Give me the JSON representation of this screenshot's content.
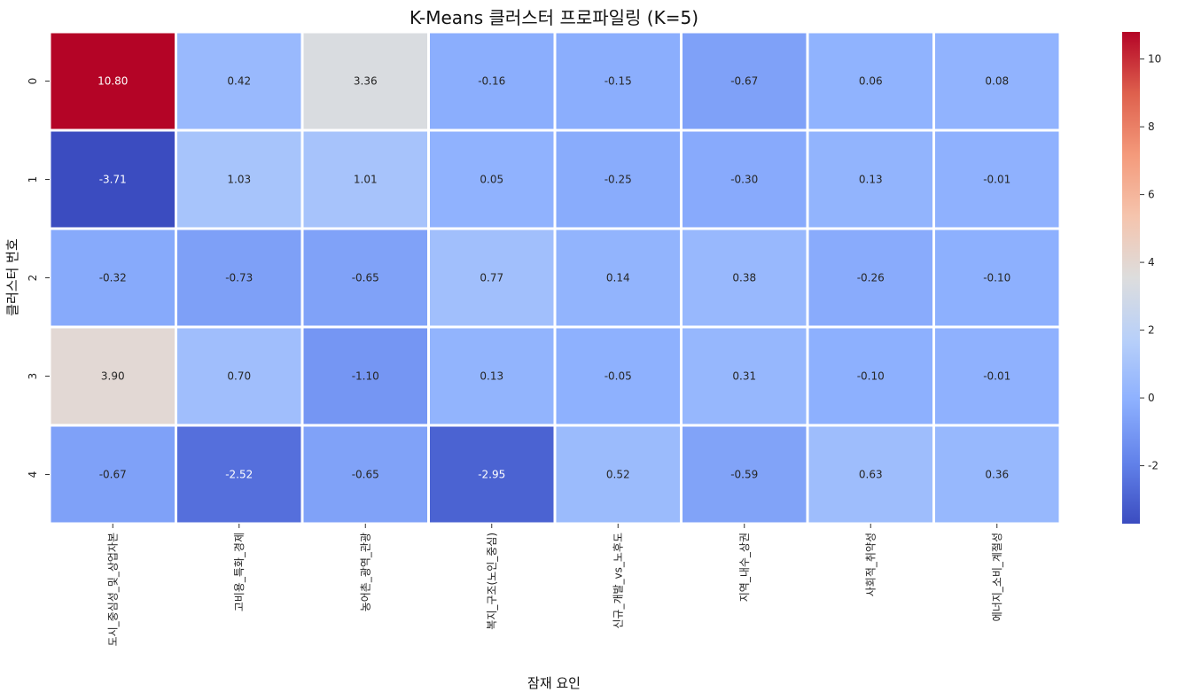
{
  "chart_data": {
    "type": "heatmap",
    "title": "K-Means 클러스터 프로파일링 (K=5)",
    "xlabel": "잠재 요인",
    "ylabel": "클러스터 번호",
    "columns": [
      "도시_중심성_및_상업자본",
      "고비용_특화_경제",
      "농어촌_광역_관광",
      "복지_구조(노인_중심)",
      "신규_개발_vs_노후도",
      "지역_내수_상권",
      "사회적_취약성",
      "에너지_소비_계절성"
    ],
    "rows": [
      "0",
      "1",
      "2",
      "3",
      "4"
    ],
    "values": [
      [
        10.8,
        0.42,
        3.36,
        -0.16,
        -0.15,
        -0.67,
        0.06,
        0.08
      ],
      [
        -3.71,
        1.03,
        1.01,
        0.05,
        -0.25,
        -0.3,
        0.13,
        -0.01
      ],
      [
        -0.32,
        -0.73,
        -0.65,
        0.77,
        0.14,
        0.38,
        -0.26,
        -0.1
      ],
      [
        3.9,
        0.7,
        -1.1,
        0.13,
        -0.05,
        0.31,
        -0.1,
        -0.01
      ],
      [
        -0.67,
        -2.52,
        -0.65,
        -2.95,
        0.52,
        -0.59,
        0.63,
        0.36
      ]
    ],
    "value_labels": [
      [
        "10.80",
        "0.42",
        "3.36",
        "-0.16",
        "-0.15",
        "-0.67",
        "0.06",
        "0.08"
      ],
      [
        "-3.71",
        "1.03",
        "1.01",
        "0.05",
        "-0.25",
        "-0.30",
        "0.13",
        "-0.01"
      ],
      [
        "-0.32",
        "-0.73",
        "-0.65",
        "0.77",
        "0.14",
        "0.38",
        "-0.26",
        "-0.10"
      ],
      [
        "3.90",
        "0.70",
        "-1.10",
        "0.13",
        "-0.05",
        "0.31",
        "-0.10",
        "-0.01"
      ],
      [
        "-0.67",
        "-2.52",
        "-0.65",
        "-2.95",
        "0.52",
        "-0.59",
        "0.63",
        "0.36"
      ]
    ],
    "colormap": "coolwarm",
    "vmin": -3.71,
    "vmax": 10.8,
    "colorbar_ticks": [
      10,
      8,
      6,
      4,
      2,
      0,
      -2
    ],
    "colorbar_tick_labels": [
      "10",
      "8",
      "6",
      "4",
      "2",
      "0",
      "-2"
    ],
    "colors": {
      "low": "#3b4cc0",
      "mid": "#dddddd",
      "high": "#b40426",
      "gridline": "#ffffff"
    }
  }
}
